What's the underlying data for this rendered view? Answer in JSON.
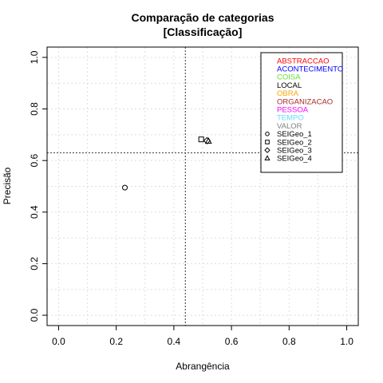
{
  "chart_data": {
    "type": "scatter",
    "title": "Comparação de categorias",
    "subtitle": "[Classificação]",
    "xlabel": "Abrangência",
    "ylabel": "Precisão",
    "xlim": [
      -0.04,
      1.04
    ],
    "ylim": [
      -0.04,
      1.04
    ],
    "x_ticks": [
      0.0,
      0.2,
      0.4,
      0.6,
      0.8,
      1.0
    ],
    "x_tick_labels": [
      "0.0",
      "0.2",
      "0.4",
      "0.6",
      "0.8",
      "1.0"
    ],
    "y_ticks": [
      0.0,
      0.2,
      0.4,
      0.6,
      0.8,
      1.0
    ],
    "y_tick_labels": [
      "0.0",
      "0.2",
      "0.4",
      "0.6",
      "0.8",
      "1.0"
    ],
    "grid": true,
    "legend_position": "top-right",
    "reference_lines": {
      "vertical_x": 0.44,
      "horizontal_y": 0.63
    },
    "category_legend": [
      {
        "name": "ABSTRACCAO",
        "color": "#ff0000"
      },
      {
        "name": "ACONTECIMENTO",
        "color": "#0000ff"
      },
      {
        "name": "COISA",
        "color": "#66dd33"
      },
      {
        "name": "LOCAL",
        "color": "#000000"
      },
      {
        "name": "OBRA",
        "color": "#ffa500"
      },
      {
        "name": "ORGANIZACAO",
        "color": "#a52a2a"
      },
      {
        "name": "PESSOA",
        "color": "#ff00ff"
      },
      {
        "name": "TEMPO",
        "color": "#66ddff"
      },
      {
        "name": "VALOR",
        "color": "#808080"
      }
    ],
    "series": [
      {
        "name": "SEIGeo_1",
        "marker": "circle",
        "points": [
          {
            "x": 0.23,
            "y": 0.495
          }
        ]
      },
      {
        "name": "SEIGeo_2",
        "marker": "square",
        "points": [
          {
            "x": 0.495,
            "y": 0.682
          }
        ]
      },
      {
        "name": "SEIGeo_3",
        "marker": "diamond",
        "points": [
          {
            "x": 0.515,
            "y": 0.677
          }
        ]
      },
      {
        "name": "SEIGeo_4",
        "marker": "triangle",
        "points": [
          {
            "x": 0.52,
            "y": 0.675
          }
        ]
      }
    ]
  }
}
